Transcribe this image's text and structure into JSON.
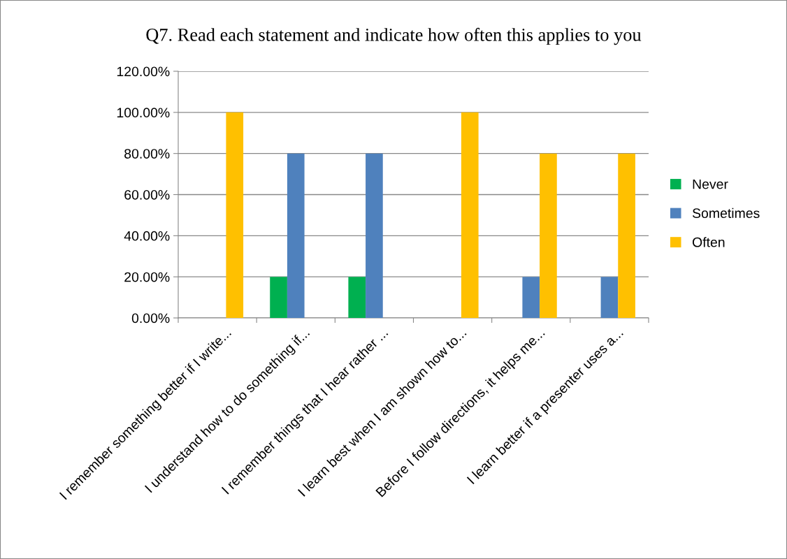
{
  "chart_data": {
    "type": "bar",
    "title": "Q7. Read each statement and indicate how often this applies to you",
    "categories": [
      "I remember something better if I write...",
      "I understand how to do something if...",
      "I remember things that I hear rather ...",
      "I learn best when I am shown how to...",
      "Before I follow directions, it helps me...",
      "I learn better if a presenter uses a..."
    ],
    "series": [
      {
        "name": "Never",
        "color": "#00b050",
        "values": [
          0,
          20,
          20,
          0,
          0,
          0
        ]
      },
      {
        "name": "Sometimes",
        "color": "#4f81bd",
        "values": [
          0,
          80,
          80,
          0,
          20,
          20
        ]
      },
      {
        "name": "Often",
        "color": "#ffc000",
        "values": [
          100,
          0,
          0,
          100,
          80,
          80
        ]
      }
    ],
    "ylim": [
      0,
      120
    ],
    "yticks": [
      {
        "value": 0,
        "label": "0.00%"
      },
      {
        "value": 20,
        "label": "20.00%"
      },
      {
        "value": 40,
        "label": "40.00%"
      },
      {
        "value": 60,
        "label": "60.00%"
      },
      {
        "value": 80,
        "label": "80.00%"
      },
      {
        "value": 100,
        "label": "100.00%"
      },
      {
        "value": 120,
        "label": "120.00%"
      }
    ],
    "grid": "y",
    "legend": "right"
  }
}
